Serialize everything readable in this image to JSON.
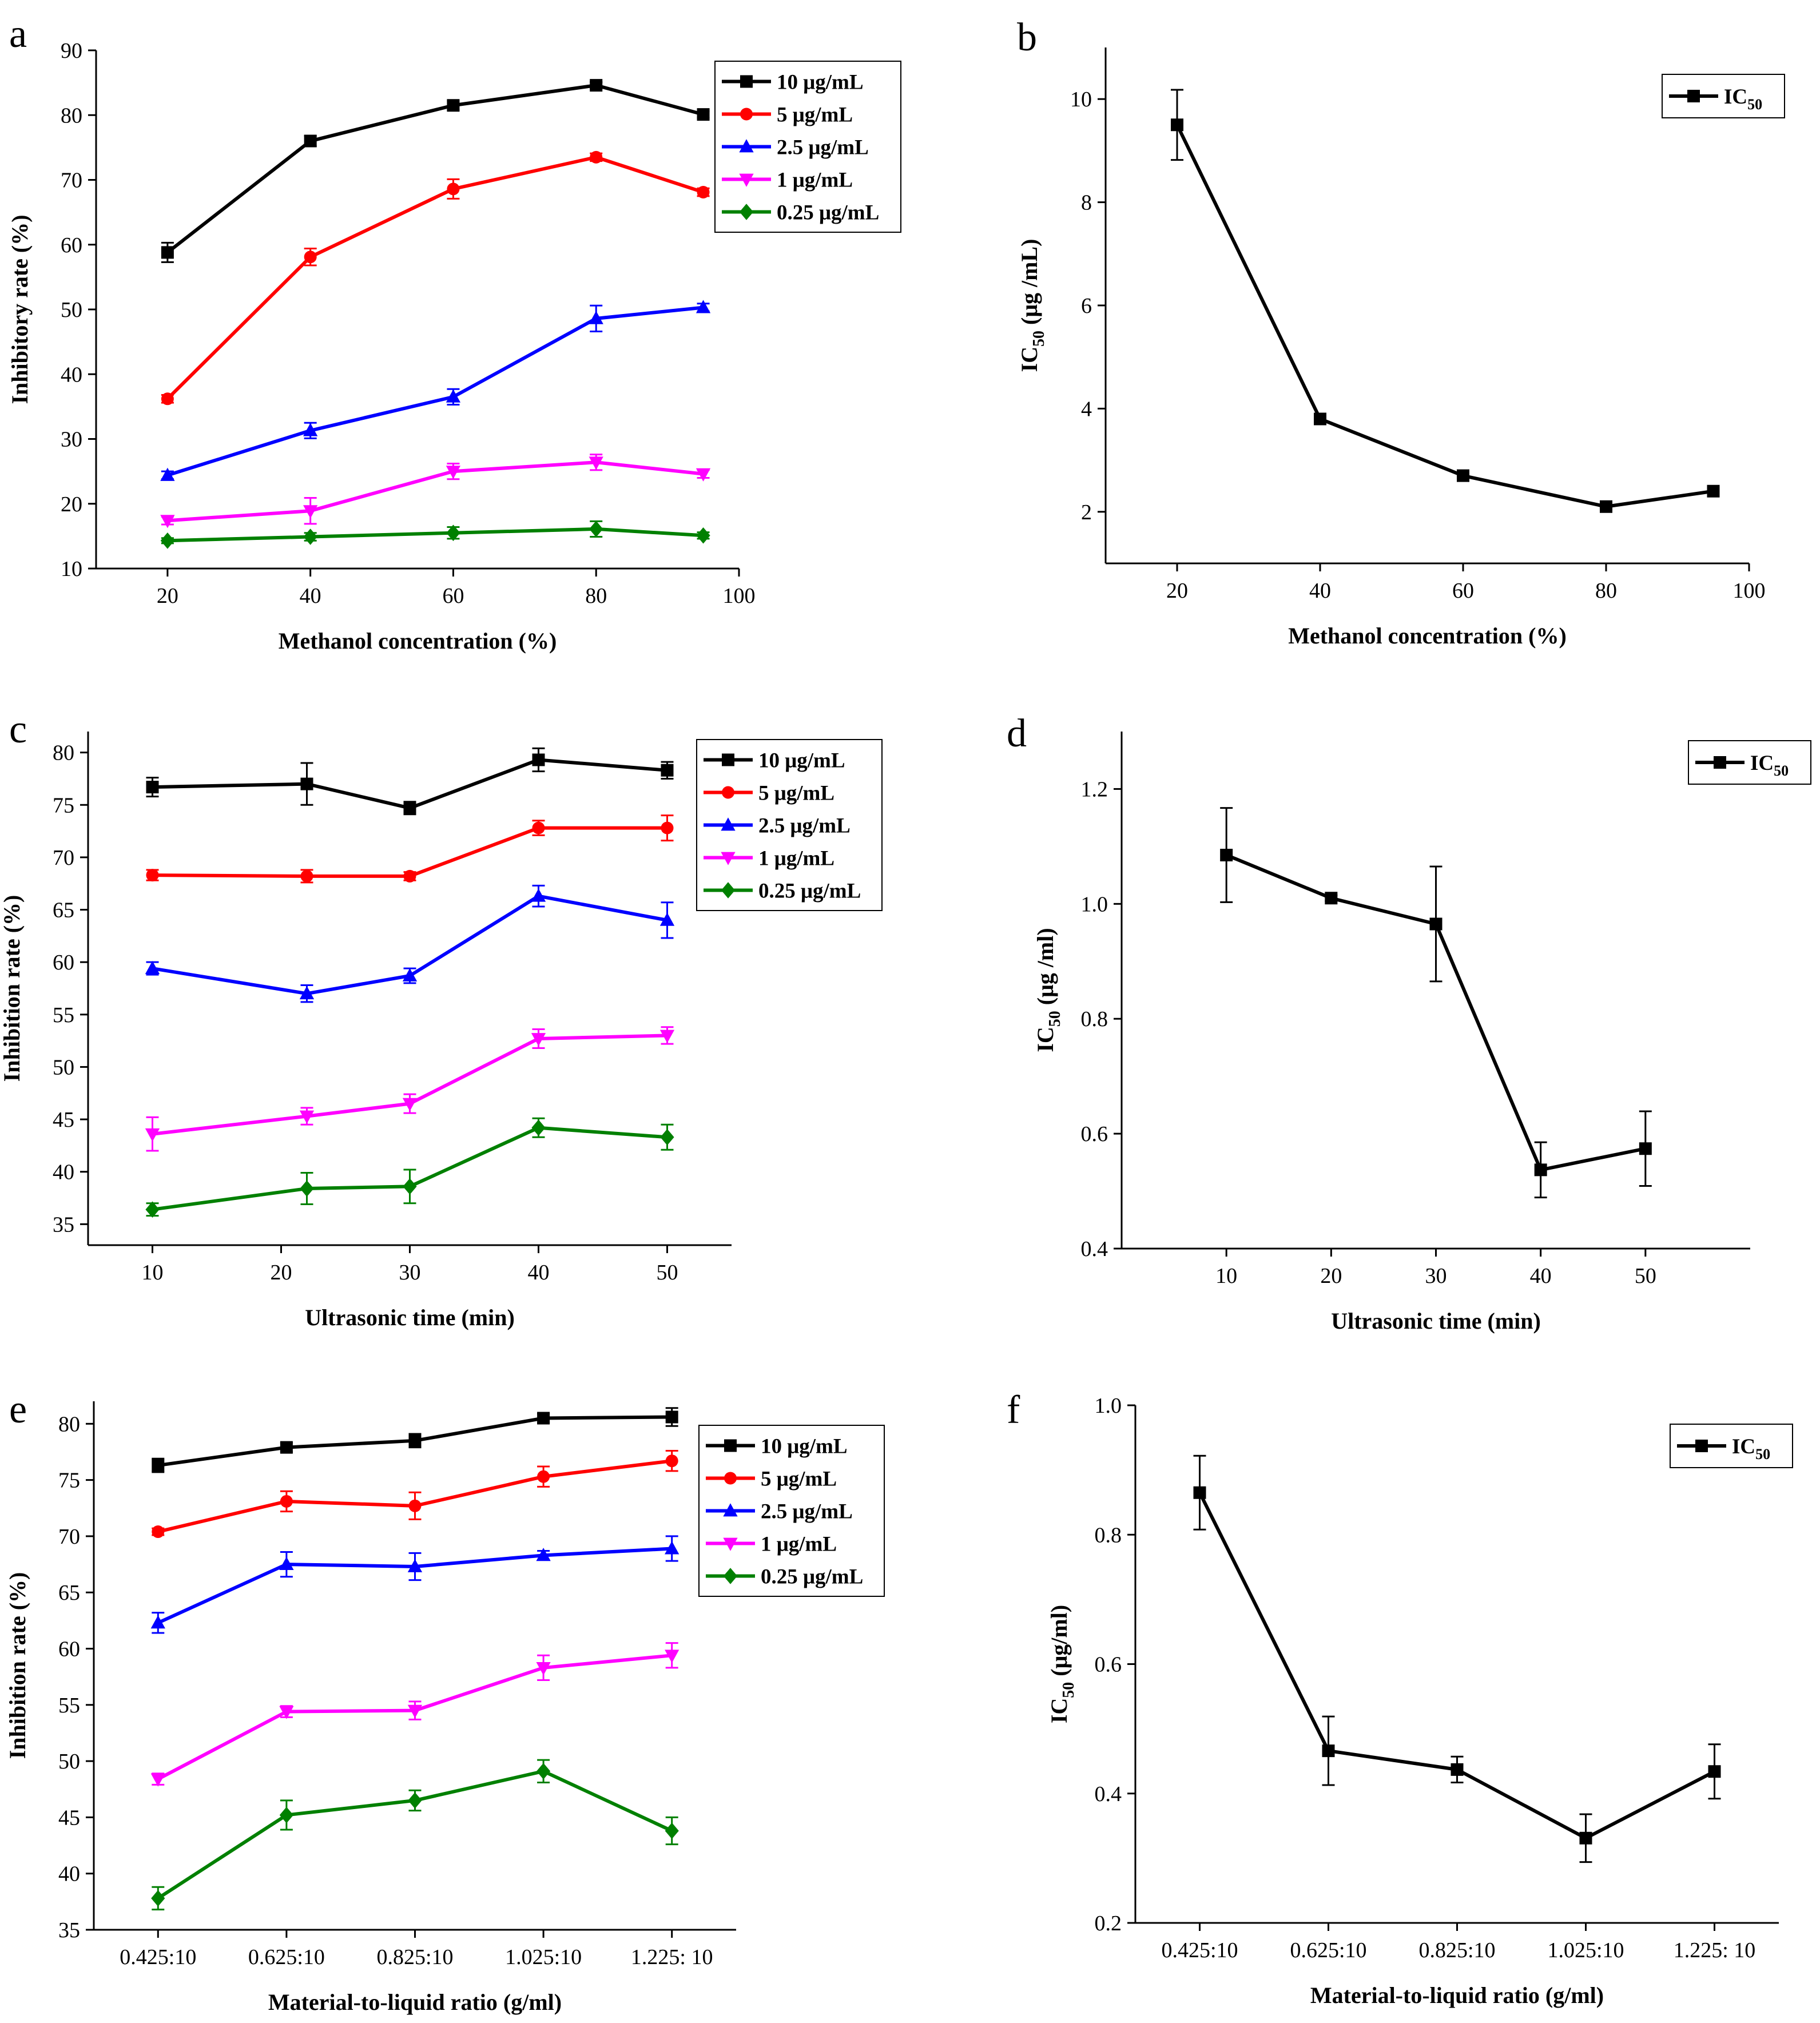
{
  "figure": {
    "panels": [
      "a",
      "b",
      "c",
      "d",
      "e",
      "f"
    ]
  },
  "chart_data": [
    {
      "id": "a",
      "label": "a",
      "type": "line",
      "title": "",
      "xlabel": "Methanol concentration (%)",
      "ylabel": "Inhibitory rate (%)",
      "xlim": [
        10,
        100
      ],
      "ylim": [
        10,
        90
      ],
      "xticks": [
        20,
        40,
        60,
        80,
        100
      ],
      "yticks": [
        10,
        20,
        30,
        40,
        50,
        60,
        70,
        80,
        90
      ],
      "legend_position": "top-right",
      "x": [
        20,
        40,
        60,
        80,
        95
      ],
      "series": [
        {
          "name": "10 μg/mL",
          "color": "#000000",
          "marker": "square",
          "values": [
            58.8,
            76.0,
            81.5,
            84.6,
            80.1
          ],
          "errors": [
            1.5,
            0.8,
            0.7,
            0.5,
            0.5
          ]
        },
        {
          "name": "5 μg/mL",
          "color": "#ff0000",
          "marker": "circle",
          "values": [
            36.2,
            58.1,
            68.6,
            73.5,
            68.1
          ],
          "errors": [
            0.6,
            1.3,
            1.5,
            0.6,
            0.6
          ]
        },
        {
          "name": "2.5 μg/mL",
          "color": "#0000ff",
          "marker": "triangle-up",
          "values": [
            24.4,
            31.3,
            36.5,
            48.6,
            50.3
          ],
          "errors": [
            0.6,
            1.2,
            1.2,
            2.0,
            0.6
          ]
        },
        {
          "name": "1 μg/mL",
          "color": "#ff00ff",
          "marker": "triangle-down",
          "values": [
            17.4,
            18.9,
            25.0,
            26.4,
            24.6
          ],
          "errors": [
            0.6,
            2.0,
            1.2,
            1.2,
            0.6
          ]
        },
        {
          "name": "0.25 μg/mL",
          "color": "#008000",
          "marker": "diamond",
          "values": [
            14.3,
            14.9,
            15.5,
            16.1,
            15.1
          ],
          "errors": [
            0.4,
            0.6,
            0.9,
            1.2,
            0.5
          ]
        }
      ]
    },
    {
      "id": "b",
      "label": "b",
      "type": "line",
      "title": "",
      "xlabel": "Methanol concentration (%)",
      "ylabel": "IC50 (μg /mL)",
      "ylabel_main": "IC",
      "ylabel_sub": "50",
      "ylabel_rest": " (μg /mL)",
      "xlim": [
        10,
        100
      ],
      "ylim": [
        1,
        11
      ],
      "xticks": [
        20,
        40,
        60,
        80,
        100
      ],
      "yticks": [
        2,
        4,
        6,
        8,
        10
      ],
      "legend_position": "top-right",
      "x": [
        20,
        40,
        60,
        80,
        95
      ],
      "series": [
        {
          "name": "IC50",
          "name_main": "IC",
          "name_sub": "50",
          "color": "#000000",
          "marker": "square",
          "values": [
            9.5,
            3.8,
            2.7,
            2.1,
            2.4
          ],
          "errors": [
            0.68,
            0.1,
            0.1,
            0.08,
            0.08
          ]
        }
      ]
    },
    {
      "id": "c",
      "label": "c",
      "type": "line",
      "title": "",
      "xlabel": "Ultrasonic time (min)",
      "ylabel": "Inhibition rate (%)",
      "xlim": [
        5,
        55
      ],
      "ylim": [
        33,
        82
      ],
      "xticks": [
        10,
        20,
        30,
        40,
        50
      ],
      "yticks": [
        35,
        40,
        45,
        50,
        55,
        60,
        65,
        70,
        75,
        80
      ],
      "legend_position": "top-right",
      "x": [
        10,
        22,
        30,
        40,
        50
      ],
      "series": [
        {
          "name": "10 μg/mL",
          "color": "#000000",
          "marker": "square",
          "values": [
            76.7,
            77.0,
            74.7,
            79.3,
            78.3
          ],
          "errors": [
            0.9,
            2.0,
            0.6,
            1.1,
            0.8
          ]
        },
        {
          "name": "5 μg/mL",
          "color": "#ff0000",
          "marker": "circle",
          "values": [
            68.3,
            68.2,
            68.2,
            72.8,
            72.8
          ],
          "errors": [
            0.5,
            0.6,
            0.4,
            0.7,
            1.2
          ]
        },
        {
          "name": "2.5 μg/mL",
          "color": "#0000ff",
          "marker": "triangle-up",
          "values": [
            59.4,
            57.0,
            58.7,
            66.3,
            64.0
          ],
          "errors": [
            0.6,
            0.8,
            0.7,
            1.0,
            1.7
          ]
        },
        {
          "name": "1 μg/mL",
          "color": "#ff00ff",
          "marker": "triangle-down",
          "values": [
            43.6,
            45.3,
            46.5,
            52.7,
            53.0
          ],
          "errors": [
            1.6,
            0.8,
            0.9,
            0.9,
            0.8
          ]
        },
        {
          "name": "0.25 μg/mL",
          "color": "#008000",
          "marker": "diamond",
          "values": [
            36.4,
            38.4,
            38.6,
            44.2,
            43.3
          ],
          "errors": [
            0.6,
            1.5,
            1.6,
            0.9,
            1.2
          ]
        }
      ]
    },
    {
      "id": "d",
      "label": "d",
      "type": "line",
      "title": "",
      "xlabel": "Ultrasonic time (min)",
      "ylabel": "IC50 (μg /ml)",
      "ylabel_main": "IC",
      "ylabel_sub": "50",
      "ylabel_rest": " (μg /ml)",
      "xlim": [
        0,
        60
      ],
      "ylim": [
        0.4,
        1.3
      ],
      "xticks": [
        10,
        20,
        30,
        40,
        50
      ],
      "yticks": [
        0.4,
        0.6,
        0.8,
        1.0,
        1.2
      ],
      "ytick_decimals": 1,
      "legend_position": "top-right",
      "x": [
        10,
        20,
        30,
        40,
        50
      ],
      "series": [
        {
          "name": "IC50",
          "name_main": "IC",
          "name_sub": "50",
          "color": "#000000",
          "marker": "square",
          "values": [
            1.085,
            1.01,
            0.965,
            0.537,
            0.574
          ],
          "errors": [
            0.082,
            0.005,
            0.1,
            0.048,
            0.065
          ]
        }
      ]
    },
    {
      "id": "e",
      "label": "e",
      "type": "line",
      "title": "",
      "xlabel": "Material-to-liquid ratio (g/ml)",
      "ylabel": "Inhibition rate (%)",
      "xlim": [
        0.325,
        1.325
      ],
      "ylim": [
        35,
        82
      ],
      "xticks": [
        0.425,
        0.625,
        0.825,
        1.025,
        1.225
      ],
      "xticklabels": [
        "0.425:10",
        "0.625:10",
        "0.825:10",
        "1.025:10",
        "1.225:  10"
      ],
      "yticks": [
        35,
        40,
        45,
        50,
        55,
        60,
        65,
        70,
        75,
        80
      ],
      "legend_position": "top-right",
      "x": [
        0.425,
        0.625,
        0.825,
        1.025,
        1.225
      ],
      "series": [
        {
          "name": "10 μg/mL",
          "color": "#000000",
          "marker": "square",
          "values": [
            76.3,
            77.9,
            78.5,
            80.5,
            80.6
          ],
          "errors": [
            0.6,
            0.4,
            0.6,
            0.4,
            0.8
          ]
        },
        {
          "name": "5 μg/mL",
          "color": "#ff0000",
          "marker": "circle",
          "values": [
            70.4,
            73.1,
            72.7,
            75.3,
            76.7
          ],
          "errors": [
            0.3,
            0.9,
            1.2,
            0.9,
            0.9
          ]
        },
        {
          "name": "2.5 μg/mL",
          "color": "#0000ff",
          "marker": "triangle-up",
          "values": [
            62.3,
            67.5,
            67.3,
            68.3,
            68.9
          ],
          "errors": [
            0.9,
            1.1,
            1.2,
            0.4,
            1.1
          ]
        },
        {
          "name": "1 μg/mL",
          "color": "#ff00ff",
          "marker": "triangle-down",
          "values": [
            48.4,
            54.4,
            54.5,
            58.3,
            59.4
          ],
          "errors": [
            0.5,
            0.5,
            0.8,
            1.1,
            1.1
          ]
        },
        {
          "name": "0.25 μg/mL",
          "color": "#008000",
          "marker": "diamond",
          "values": [
            37.8,
            45.2,
            46.5,
            49.1,
            43.8
          ],
          "errors": [
            1.0,
            1.3,
            0.9,
            1.0,
            1.2
          ]
        }
      ]
    },
    {
      "id": "f",
      "label": "f",
      "type": "line",
      "title": "",
      "xlabel": "Material-to-liquid ratio (g/ml)",
      "ylabel": "IC50 (μg/ml)",
      "ylabel_main": "IC",
      "ylabel_sub": "50",
      "ylabel_rest": " (μg/ml)",
      "xlim": [
        0.325,
        1.325
      ],
      "ylim": [
        0.2,
        1.0
      ],
      "xticks": [
        0.425,
        0.625,
        0.825,
        1.025,
        1.225
      ],
      "xticklabels": [
        "0.425:10",
        "0.625:10",
        "0.825:10",
        "1.025:10",
        "1.225:  10"
      ],
      "yticks": [
        0.2,
        0.4,
        0.6,
        0.8,
        1.0
      ],
      "ytick_decimals": 1,
      "legend_position": "top-right",
      "x": [
        0.425,
        0.625,
        0.825,
        1.025,
        1.225
      ],
      "series": [
        {
          "name": "IC50",
          "name_main": "IC",
          "name_sub": "50",
          "color": "#000000",
          "marker": "square",
          "values": [
            0.865,
            0.466,
            0.437,
            0.331,
            0.434
          ],
          "errors": [
            0.057,
            0.053,
            0.02,
            0.037,
            0.042
          ]
        }
      ]
    }
  ]
}
